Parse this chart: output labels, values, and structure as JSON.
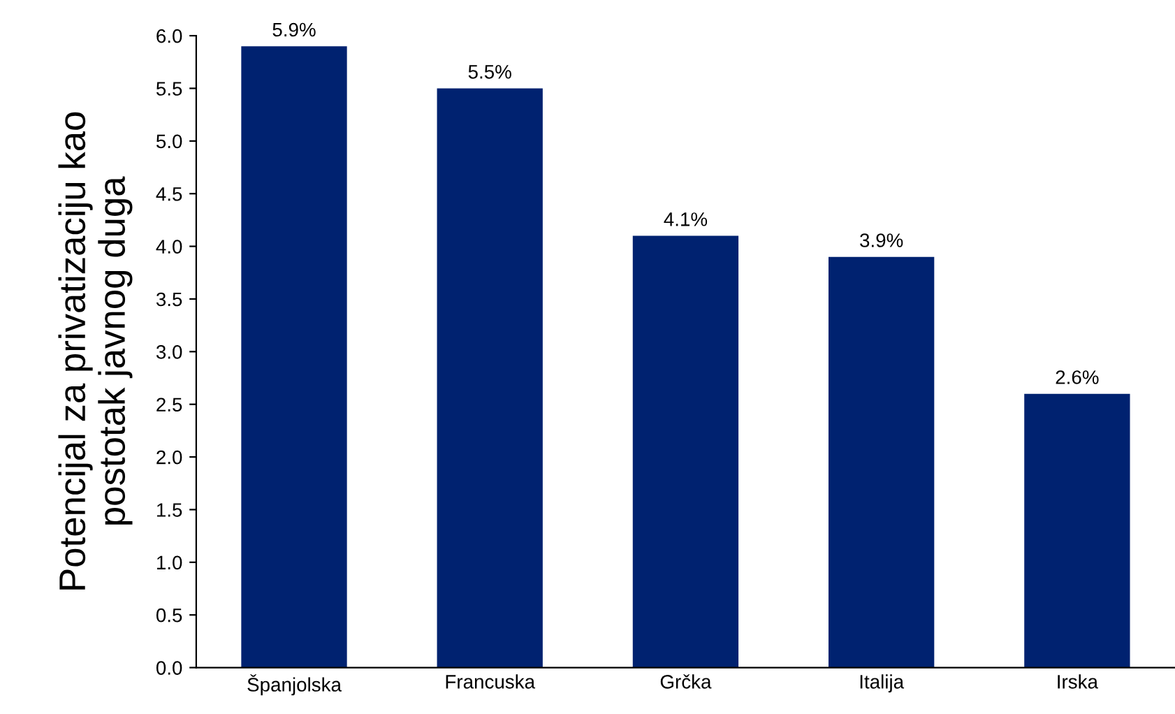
{
  "chart_data": {
    "type": "bar",
    "ylabel": "Potencijal za privatizaciju kao\npostotak javnog duga",
    "categories": [
      "Španjolska",
      "Francuska",
      "Grčka",
      "Italija",
      "Irska"
    ],
    "values": [
      5.9,
      5.5,
      4.1,
      3.9,
      2.6
    ],
    "value_labels": [
      "5.9%",
      "5.5%",
      "4.1%",
      "3.9%",
      "2.6%"
    ],
    "color": "#002270",
    "ylim": [
      0,
      6.0
    ],
    "yticks": [
      {
        "value": 0,
        "label": "0.0"
      },
      {
        "value": 0.5,
        "label": "0.5"
      },
      {
        "value": 1,
        "label": "1.0"
      },
      {
        "value": 1.5,
        "label": "1.5"
      },
      {
        "value": 2,
        "label": "2.0"
      },
      {
        "value": 2.5,
        "label": "2.5"
      },
      {
        "value": 3,
        "label": "3.0"
      },
      {
        "value": 3.5,
        "label": "3.5"
      },
      {
        "value": 4,
        "label": "4.0"
      },
      {
        "value": 4.5,
        "label": "4.5"
      },
      {
        "value": 5,
        "label": "5.0"
      },
      {
        "value": 5.5,
        "label": "5.5"
      },
      {
        "value": 6,
        "label": "6.0"
      }
    ],
    "grid": false,
    "legend": false
  }
}
